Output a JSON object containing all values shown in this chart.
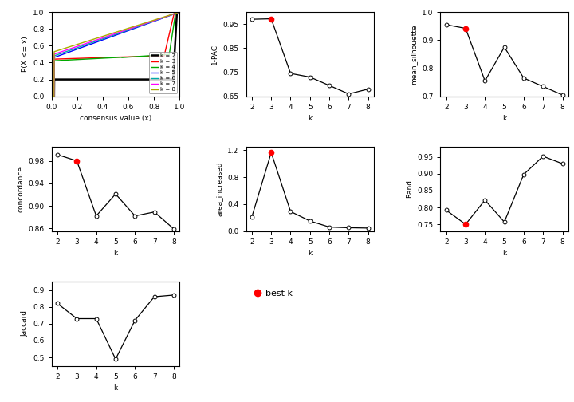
{
  "pac": {
    "k": [
      2,
      3,
      4,
      5,
      6,
      7,
      8
    ],
    "y": [
      0.97,
      0.972,
      0.745,
      0.73,
      0.695,
      0.66,
      0.68
    ],
    "best_k": 3,
    "ylabel": "1-PAC",
    "ylim": [
      0.65,
      1.0
    ],
    "yticks": [
      0.65,
      0.75,
      0.85,
      0.95
    ]
  },
  "silhouette": {
    "k": [
      2,
      3,
      4,
      5,
      6,
      7,
      8
    ],
    "y": [
      0.955,
      0.942,
      0.755,
      0.875,
      0.765,
      0.735,
      0.705
    ],
    "best_k": 3,
    "ylabel": "mean_silhouette",
    "ylim": [
      0.7,
      1.0
    ],
    "yticks": [
      0.7,
      0.8,
      0.9,
      1.0
    ]
  },
  "concordance": {
    "k": [
      2,
      3,
      4,
      5,
      6,
      7,
      8
    ],
    "y": [
      0.991,
      0.98,
      0.882,
      0.921,
      0.882,
      0.889,
      0.859
    ],
    "best_k": 3,
    "ylabel": "concordance",
    "ylim": [
      0.855,
      1.005
    ],
    "yticks": [
      0.86,
      0.9,
      0.94,
      0.98
    ]
  },
  "area_increased": {
    "k": [
      2,
      3,
      4,
      5,
      6,
      7,
      8
    ],
    "y": [
      0.21,
      1.165,
      0.29,
      0.15,
      0.06,
      0.05,
      0.045
    ],
    "best_k": 3,
    "ylabel": "area_increased",
    "ylim": [
      0.0,
      1.25
    ],
    "yticks": [
      0.0,
      0.4,
      0.8,
      1.2
    ]
  },
  "rand": {
    "k": [
      2,
      3,
      4,
      5,
      6,
      7,
      8
    ],
    "y": [
      0.792,
      0.75,
      0.822,
      0.757,
      0.898,
      0.952,
      0.93
    ],
    "best_k": 3,
    "ylabel": "Rand",
    "ylim": [
      0.73,
      0.98
    ],
    "yticks": [
      0.75,
      0.8,
      0.85,
      0.9,
      0.95
    ]
  },
  "jaccard": {
    "k": [
      2,
      3,
      4,
      5,
      6,
      7,
      8
    ],
    "y": [
      0.82,
      0.73,
      0.73,
      0.49,
      0.72,
      0.86,
      0.87
    ],
    "best_k": null,
    "ylabel": "Jaccard",
    "ylim": [
      0.45,
      0.95
    ],
    "yticks": [
      0.5,
      0.6,
      0.7,
      0.8,
      0.9
    ]
  },
  "ecdf_colors": [
    "#000000",
    "#FF0000",
    "#00AA00",
    "#0000FF",
    "#00AAAA",
    "#FF00FF",
    "#AAAA00"
  ],
  "ecdf_labels": [
    "k = 2",
    "k = 3",
    "k = 4",
    "k = 5",
    "k = 6",
    "k = 7",
    "k = 8"
  ],
  "bg_color": "#FFFFFF"
}
